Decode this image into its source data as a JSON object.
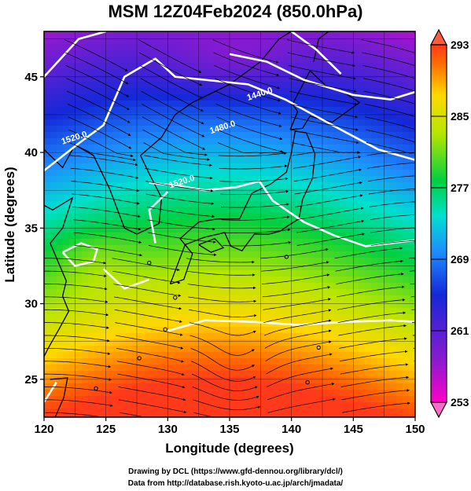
{
  "title": "MSM 12Z04Feb2024 (850.0hPa)",
  "axes": {
    "xlabel": "Longitude (degrees)",
    "ylabel": "Latitude  (degrees)",
    "xlim": [
      120,
      150
    ],
    "ylim": [
      22.5,
      48
    ],
    "xticks": [
      120,
      125,
      130,
      135,
      140,
      145,
      150
    ],
    "yticks": [
      25,
      30,
      35,
      40,
      45
    ]
  },
  "colorbar": {
    "min": 253,
    "max": 293,
    "ticks": [
      253,
      261,
      269,
      277,
      285,
      293
    ]
  },
  "contours": [
    {
      "label": "1520.0",
      "lon": 122.5,
      "lat": 40.8
    },
    {
      "label": "1480.0",
      "lon": 134.5,
      "lat": 41.5
    },
    {
      "label": "1440.0",
      "lon": 137.5,
      "lat": 43.7
    },
    {
      "label": "1520.0",
      "lon": 131.2,
      "lat": 37.9
    }
  ],
  "credits": {
    "line1": "Drawing by DCL (https://www.gfd-dennou.org/library/dcl/)",
    "line2": "Data from http://database.rish.kyoto-u.ac.jp/arch/jmadata/"
  },
  "colors": {
    "cold": "#8a1ad0",
    "warm": "#ff5a00",
    "contour": "#ffffff",
    "land_outline": "#000000"
  }
}
